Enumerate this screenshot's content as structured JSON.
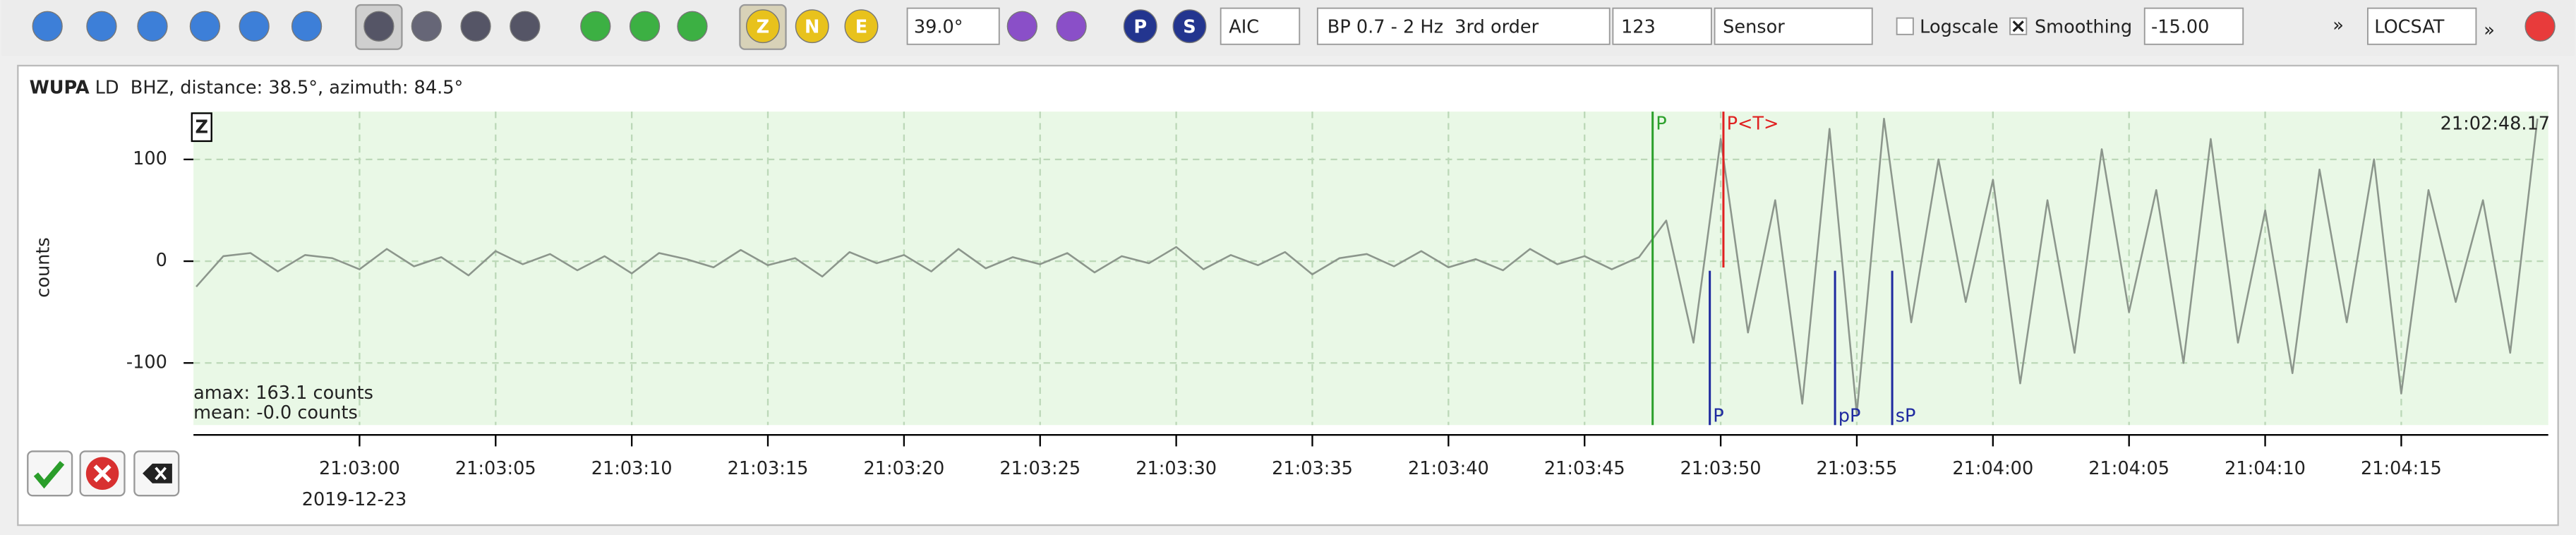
{
  "toolbar": {
    "zne": [
      "Z",
      "N",
      "E"
    ],
    "filter_angle": "39.0°",
    "phase_buttons": [
      "P",
      "S"
    ],
    "method": "AIC",
    "filter": "BP 0.7 - 2 Hz  3rd order",
    "amp_value": "123",
    "amp_type": "Sensor",
    "logscale": "Logscale",
    "smoothing": "Smoothing",
    "smoothing_value": "-15.00",
    "more": "»",
    "locator": "LOCSAT",
    "more2": "»"
  },
  "panel": {
    "station": "WUPA",
    "info": "LD  BHZ, distance: 38.5°, azimuth: 84.5°",
    "component": "Z",
    "time": "21:02:48.17",
    "amax": "amax: 163.1 counts",
    "mean": "mean: -0.0 counts",
    "date": "2019-12-23"
  },
  "chart_data": {
    "type": "line",
    "ylabel": "counts",
    "x": [
      -6,
      -5,
      -4,
      -3,
      -2,
      -1,
      0,
      1,
      2,
      3,
      4,
      5,
      6,
      7,
      8,
      9,
      10,
      11,
      12,
      13,
      14,
      15,
      16,
      17,
      18,
      19,
      20,
      21,
      22,
      23,
      24,
      25,
      26,
      27,
      28,
      29,
      30,
      31,
      32,
      33,
      34,
      35,
      36,
      37,
      38,
      39,
      40,
      41,
      42,
      43,
      44,
      45,
      46,
      47,
      48,
      49,
      50,
      51,
      52,
      53,
      54,
      55,
      56,
      57,
      58,
      59,
      60,
      61,
      62,
      63,
      64,
      65,
      66,
      67,
      68,
      69,
      70,
      71,
      72,
      73,
      74,
      75,
      76,
      77,
      78,
      79,
      80
    ],
    "series": [
      {
        "color": "#8c968c",
        "values": [
          -25,
          5,
          8,
          -10,
          6,
          3,
          -8,
          12,
          -5,
          4,
          -14,
          10,
          -3,
          7,
          -9,
          5,
          -12,
          8,
          2,
          -6,
          11,
          -4,
          3,
          -15,
          9,
          -2,
          6,
          -10,
          12,
          -7,
          4,
          -3,
          8,
          -11,
          5,
          -2,
          14,
          -8,
          6,
          -4,
          9,
          -13,
          3,
          7,
          -5,
          10,
          -6,
          2,
          -9,
          12,
          -3,
          5,
          -8,
          4,
          40,
          -80,
          120,
          -70,
          60,
          -140,
          130,
          -150,
          140,
          -60,
          100,
          -40,
          80,
          -120,
          60,
          -90,
          110,
          -50,
          70,
          -100,
          120,
          -80,
          50,
          -110,
          90,
          -60,
          100,
          -130,
          70,
          -40,
          60,
          -90,
          140
        ]
      }
    ],
    "xlim": [
      -6.1,
      80.4
    ],
    "ylim": [
      -161,
      147
    ],
    "xticks": [
      {
        "value": 0,
        "label": "21:03:00"
      },
      {
        "value": 5,
        "label": "21:03:05"
      },
      {
        "value": 10,
        "label": "21:03:10"
      },
      {
        "value": 15,
        "label": "21:03:15"
      },
      {
        "value": 20,
        "label": "21:03:20"
      },
      {
        "value": 25,
        "label": "21:03:25"
      },
      {
        "value": 30,
        "label": "21:03:30"
      },
      {
        "value": 35,
        "label": "21:03:35"
      },
      {
        "value": 40,
        "label": "21:03:40"
      },
      {
        "value": 45,
        "label": "21:03:45"
      },
      {
        "value": 50,
        "label": "21:03:50"
      },
      {
        "value": 55,
        "label": "21:03:55"
      },
      {
        "value": 60,
        "label": "21:04:00"
      },
      {
        "value": 65,
        "label": "21:04:05"
      },
      {
        "value": 70,
        "label": "21:04:10"
      },
      {
        "value": 75,
        "label": "21:04:15"
      }
    ],
    "yticks": [
      -100,
      0,
      100
    ],
    "grid": true,
    "picks": [
      {
        "label": "P",
        "x": 47.5,
        "color": "#2ca02c"
      },
      {
        "label": "P<T>",
        "x": 50.1,
        "color": "#e02020"
      }
    ],
    "predicted": [
      {
        "label": "P",
        "x": 49.6,
        "color": "#1f2aa0"
      },
      {
        "label": "pP",
        "x": 54.2,
        "color": "#1f2aa0"
      },
      {
        "label": "sP",
        "x": 56.3,
        "color": "#1f2aa0"
      }
    ]
  }
}
